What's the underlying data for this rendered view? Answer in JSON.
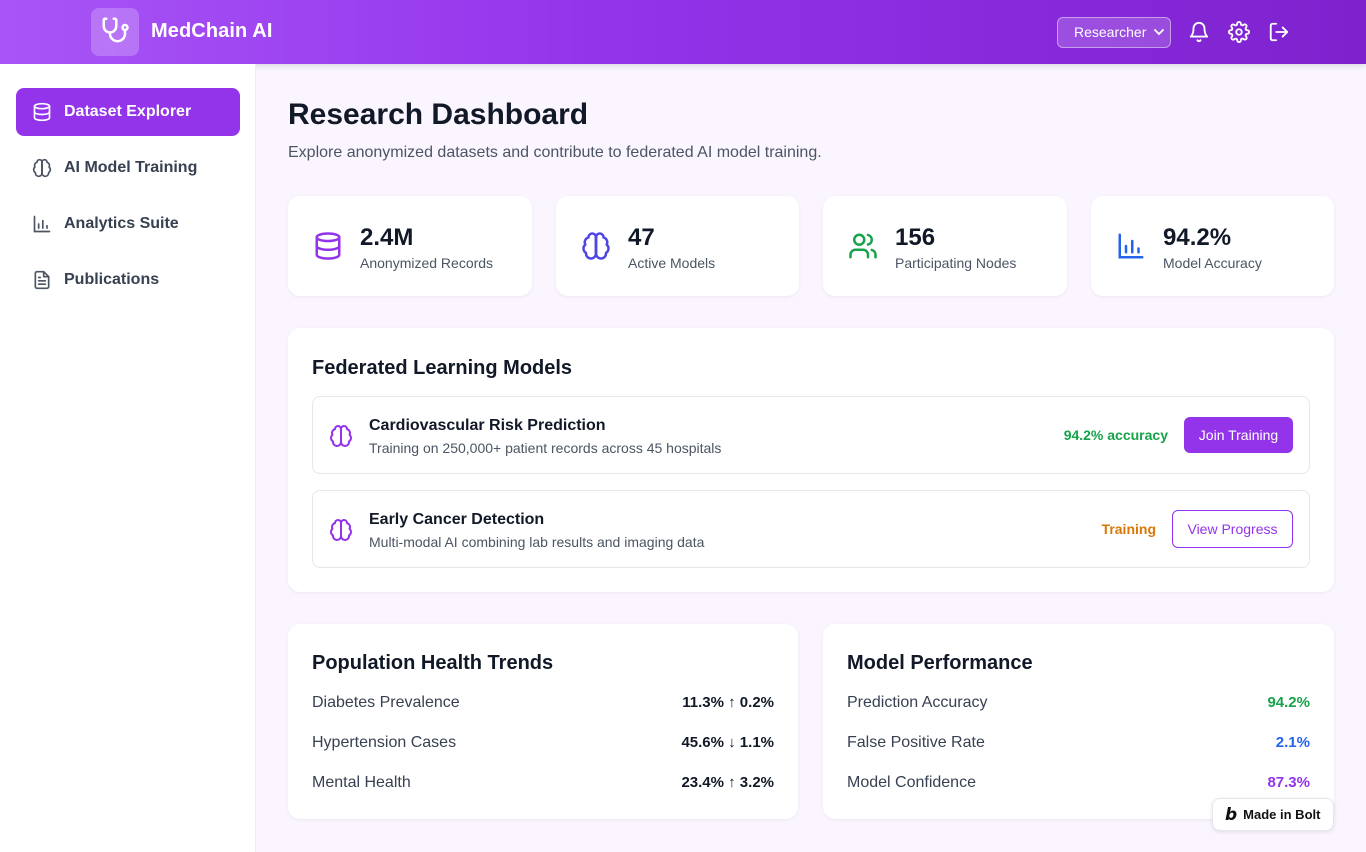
{
  "header": {
    "app_title": "MedChain AI",
    "role_selected": "Researcher",
    "icons": [
      "stethoscope-icon",
      "bell-icon",
      "gear-icon",
      "logout-icon"
    ]
  },
  "sidebar": {
    "items": [
      {
        "label": "Dataset Explorer",
        "icon": "database-icon",
        "active": true
      },
      {
        "label": "AI Model Training",
        "icon": "brain-icon",
        "active": false
      },
      {
        "label": "Analytics Suite",
        "icon": "bar-chart-icon",
        "active": false
      },
      {
        "label": "Publications",
        "icon": "document-icon",
        "active": false
      }
    ]
  },
  "main": {
    "title": "Research Dashboard",
    "subtitle": "Explore anonymized datasets and contribute to federated AI model training.",
    "stats": [
      {
        "value": "2.4M",
        "label": "Anonymized Records",
        "icon": "database-icon",
        "color": "#9333ea"
      },
      {
        "value": "47",
        "label": "Active Models",
        "icon": "brain-icon",
        "color": "#4f46e5"
      },
      {
        "value": "156",
        "label": "Participating Nodes",
        "icon": "users-icon",
        "color": "#16a34a"
      },
      {
        "value": "94.2%",
        "label": "Model Accuracy",
        "icon": "bar-chart-icon",
        "color": "#2563eb"
      }
    ],
    "federated": {
      "title": "Federated Learning Models",
      "models": [
        {
          "name": "Cardiovascular Risk Prediction",
          "description": "Training on 250,000+ patient records across 45 hospitals",
          "status": "94.2% accuracy",
          "status_color": "#16a34a",
          "action": "Join Training"
        },
        {
          "name": "Early Cancer Detection",
          "description": "Multi-modal AI combining lab results and imaging data",
          "status": "Training",
          "status_color": "#d97706",
          "action": "View Progress"
        }
      ]
    },
    "population": {
      "title": "Population Health Trends",
      "rows": [
        {
          "label": "Diabetes Prevalence",
          "value": "11.3% ↑ 0.2%"
        },
        {
          "label": "Hypertension Cases",
          "value": "45.6% ↓ 1.1%"
        },
        {
          "label": "Mental Health",
          "value": "23.4% ↑ 3.2%"
        }
      ]
    },
    "performance": {
      "title": "Model Performance",
      "rows": [
        {
          "label": "Prediction Accuracy",
          "value": "94.2%",
          "color": "#16a34a"
        },
        {
          "label": "False Positive Rate",
          "value": "2.1%",
          "color": "#2563eb"
        },
        {
          "label": "Model Confidence",
          "value": "87.3%",
          "color": "#9333ea"
        }
      ]
    }
  },
  "badge": {
    "label": "Made in Bolt",
    "mark": "b"
  }
}
